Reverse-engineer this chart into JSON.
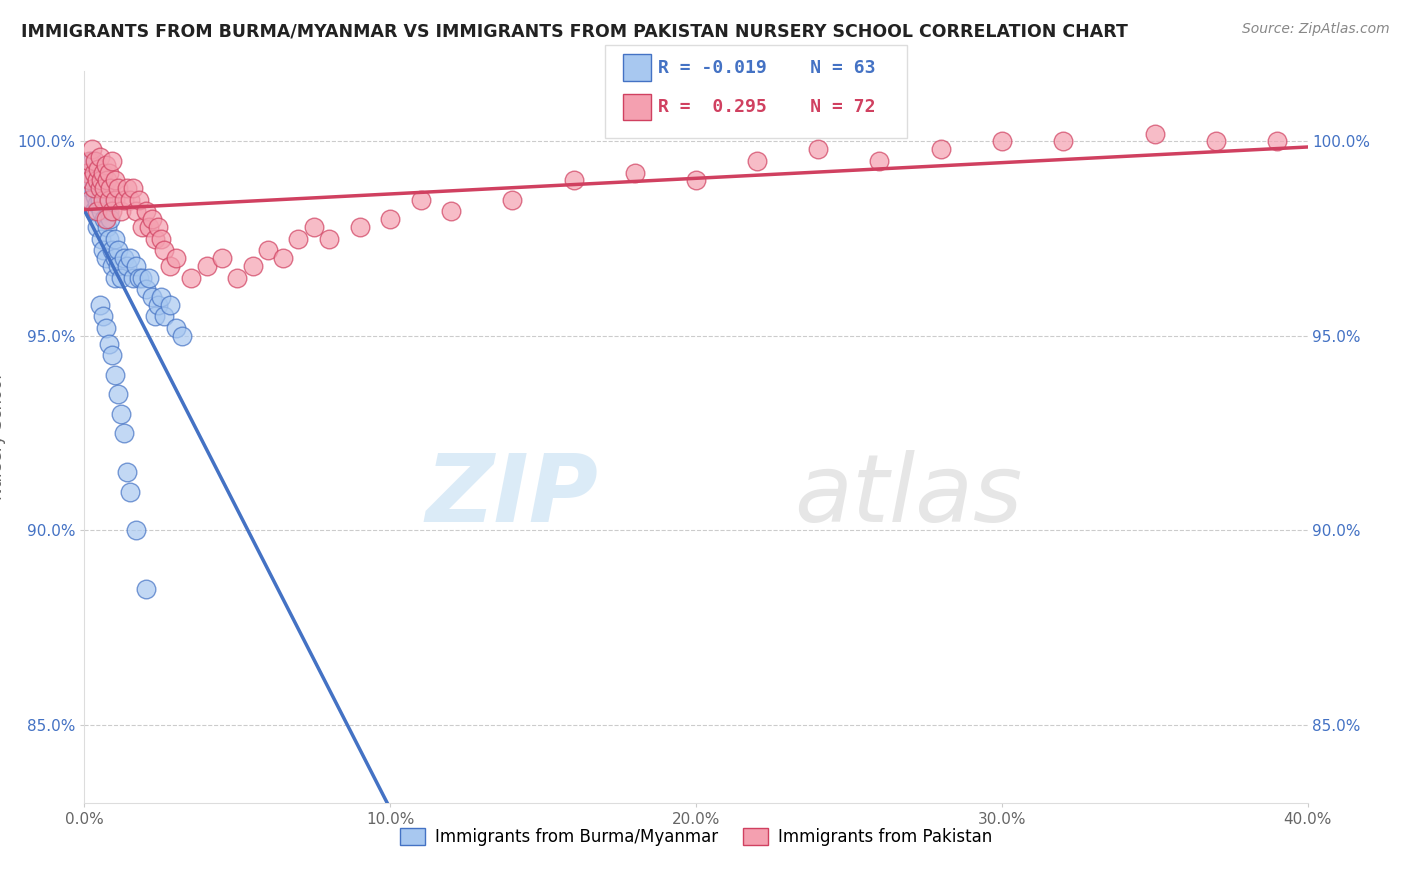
{
  "title": "IMMIGRANTS FROM BURMA/MYANMAR VS IMMIGRANTS FROM PAKISTAN NURSERY SCHOOL CORRELATION CHART",
  "source_text": "Source: ZipAtlas.com",
  "ylabel": "Nursery School",
  "xlim": [
    0.0,
    40.0
  ],
  "ylim": [
    83.0,
    101.8
  ],
  "yticks": [
    85.0,
    90.0,
    95.0,
    100.0
  ],
  "ytick_labels": [
    "85.0%",
    "90.0%",
    "95.0%",
    "100.0%"
  ],
  "xticks": [
    0.0,
    10.0,
    20.0,
    30.0,
    40.0
  ],
  "xtick_labels": [
    "0.0%",
    "10.0%",
    "20.0%",
    "30.0%",
    "40.0%"
  ],
  "legend_r1": "R = -0.019",
  "legend_n1": "N = 63",
  "legend_r2": "R =  0.295",
  "legend_n2": "N = 72",
  "color_blue": "#A8C8F0",
  "color_pink": "#F4A0B0",
  "color_line_blue": "#4472C4",
  "color_line_pink": "#D04060",
  "watermark_zip": "ZIP",
  "watermark_atlas": "atlas",
  "background_color": "#FFFFFF",
  "series1_x": [
    0.1,
    0.15,
    0.2,
    0.2,
    0.25,
    0.3,
    0.3,
    0.35,
    0.35,
    0.4,
    0.4,
    0.45,
    0.5,
    0.5,
    0.55,
    0.55,
    0.6,
    0.6,
    0.65,
    0.7,
    0.7,
    0.75,
    0.8,
    0.8,
    0.85,
    0.9,
    0.9,
    1.0,
    1.0,
    1.0,
    1.1,
    1.1,
    1.2,
    1.3,
    1.4,
    1.5,
    1.6,
    1.7,
    1.8,
    1.9,
    2.0,
    2.1,
    2.2,
    2.3,
    2.4,
    2.5,
    2.6,
    2.8,
    3.0,
    3.2,
    0.5,
    0.6,
    0.7,
    0.8,
    0.9,
    1.0,
    1.1,
    1.2,
    1.3,
    1.4,
    1.5,
    1.7,
    2.0
  ],
  "series1_y": [
    98.5,
    99.0,
    99.2,
    98.8,
    99.5,
    99.0,
    98.2,
    98.6,
    99.1,
    98.4,
    97.8,
    98.9,
    99.0,
    98.5,
    98.2,
    97.5,
    98.8,
    97.2,
    98.0,
    98.5,
    97.0,
    97.8,
    98.2,
    97.5,
    98.0,
    97.2,
    96.8,
    97.5,
    96.5,
    97.0,
    97.2,
    96.8,
    96.5,
    97.0,
    96.8,
    97.0,
    96.5,
    96.8,
    96.5,
    96.5,
    96.2,
    96.5,
    96.0,
    95.5,
    95.8,
    96.0,
    95.5,
    95.8,
    95.2,
    95.0,
    95.8,
    95.5,
    95.2,
    94.8,
    94.5,
    94.0,
    93.5,
    93.0,
    92.5,
    91.5,
    91.0,
    90.0,
    88.5
  ],
  "series2_x": [
    0.1,
    0.15,
    0.2,
    0.2,
    0.25,
    0.3,
    0.3,
    0.35,
    0.4,
    0.4,
    0.45,
    0.5,
    0.5,
    0.55,
    0.6,
    0.6,
    0.65,
    0.7,
    0.7,
    0.75,
    0.8,
    0.8,
    0.85,
    0.9,
    0.9,
    1.0,
    1.0,
    1.1,
    1.2,
    1.3,
    1.4,
    1.5,
    1.6,
    1.7,
    1.8,
    1.9,
    2.0,
    2.1,
    2.2,
    2.3,
    2.4,
    2.5,
    2.6,
    2.8,
    3.0,
    3.5,
    4.0,
    4.5,
    5.0,
    5.5,
    6.0,
    6.5,
    7.0,
    7.5,
    8.0,
    9.0,
    10.0,
    11.0,
    12.0,
    14.0,
    16.0,
    18.0,
    20.0,
    22.0,
    24.0,
    26.0,
    28.0,
    30.0,
    32.0,
    35.0,
    37.0,
    39.0
  ],
  "series2_y": [
    99.2,
    99.5,
    99.0,
    98.5,
    99.8,
    99.2,
    98.8,
    99.5,
    99.0,
    98.2,
    99.3,
    98.8,
    99.6,
    99.0,
    98.5,
    99.2,
    98.8,
    99.4,
    98.0,
    99.0,
    98.5,
    99.2,
    98.8,
    99.5,
    98.2,
    99.0,
    98.5,
    98.8,
    98.2,
    98.5,
    98.8,
    98.5,
    98.8,
    98.2,
    98.5,
    97.8,
    98.2,
    97.8,
    98.0,
    97.5,
    97.8,
    97.5,
    97.2,
    96.8,
    97.0,
    96.5,
    96.8,
    97.0,
    96.5,
    96.8,
    97.2,
    97.0,
    97.5,
    97.8,
    97.5,
    97.8,
    98.0,
    98.5,
    98.2,
    98.5,
    99.0,
    99.2,
    99.0,
    99.5,
    99.8,
    99.5,
    99.8,
    100.0,
    100.0,
    100.2,
    100.0,
    100.0
  ]
}
